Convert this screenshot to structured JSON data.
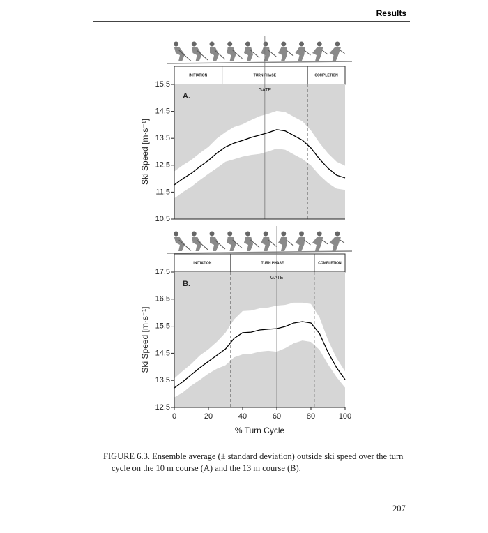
{
  "header": "Results",
  "chart_data": [
    {
      "type": "line",
      "panel_label": "A.",
      "ylabel": "Ski Speed [m·s⁻¹]",
      "phases": [
        "INITIATION",
        "TURN PHASE",
        "COMPLETION"
      ],
      "phase_bounds": [
        28,
        78
      ],
      "gate": 53,
      "gate_label": "GATE",
      "x": [
        0,
        5,
        10,
        15,
        20,
        25,
        30,
        35,
        40,
        45,
        50,
        55,
        60,
        65,
        70,
        75,
        80,
        85,
        90,
        95,
        100
      ],
      "values": [
        11.77,
        12.0,
        12.2,
        12.45,
        12.68,
        12.95,
        13.18,
        13.32,
        13.42,
        13.53,
        13.62,
        13.71,
        13.82,
        13.77,
        13.6,
        13.43,
        13.14,
        12.73,
        12.39,
        12.13,
        12.03
      ],
      "sd": [
        0.5,
        0.5,
        0.5,
        0.5,
        0.5,
        0.55,
        0.55,
        0.6,
        0.6,
        0.65,
        0.7,
        0.7,
        0.7,
        0.7,
        0.7,
        0.7,
        0.65,
        0.6,
        0.55,
        0.5,
        0.45
      ],
      "color": "#000000",
      "band_color": "#ffffff",
      "background": "#d6d6d6",
      "xlim": [
        0,
        100
      ],
      "ylim": [
        10.5,
        15.5
      ],
      "yticks": [
        10.5,
        11.5,
        12.5,
        13.5,
        14.5,
        15.5
      ]
    },
    {
      "type": "line",
      "panel_label": "B.",
      "ylabel": "Ski Speed [m·s⁻¹]",
      "xlabel": "% Turn Cycle",
      "phases": [
        "INITIATION",
        "TURN PHASE",
        "COMPLETION"
      ],
      "phase_bounds": [
        33,
        82
      ],
      "gate": 60,
      "gate_label": "GATE",
      "x": [
        0,
        5,
        10,
        15,
        20,
        25,
        30,
        35,
        40,
        45,
        50,
        55,
        60,
        65,
        70,
        75,
        80,
        85,
        90,
        95,
        100
      ],
      "values": [
        13.22,
        13.45,
        13.71,
        13.97,
        14.2,
        14.43,
        14.66,
        15.05,
        15.26,
        15.28,
        15.36,
        15.39,
        15.41,
        15.49,
        15.62,
        15.67,
        15.62,
        15.23,
        14.54,
        13.97,
        13.53
      ],
      "sd": [
        0.35,
        0.4,
        0.4,
        0.45,
        0.45,
        0.5,
        0.6,
        0.7,
        0.8,
        0.8,
        0.8,
        0.8,
        0.85,
        0.8,
        0.75,
        0.7,
        0.7,
        0.6,
        0.45,
        0.35,
        0.3
      ],
      "color": "#000000",
      "band_color": "#ffffff",
      "background": "#d6d6d6",
      "xlim": [
        0,
        100
      ],
      "ylim": [
        12.5,
        17.5
      ],
      "xticks": [
        0,
        20,
        40,
        60,
        80,
        100
      ],
      "yticks": [
        12.5,
        13.5,
        14.5,
        15.5,
        16.5,
        17.5
      ]
    }
  ],
  "caption": "FIGURE 6.3. Ensemble average (± standard deviation) outside ski speed over the turn cycle on the 10 m course (A) and the 13 m course (B).",
  "page_number": "207"
}
